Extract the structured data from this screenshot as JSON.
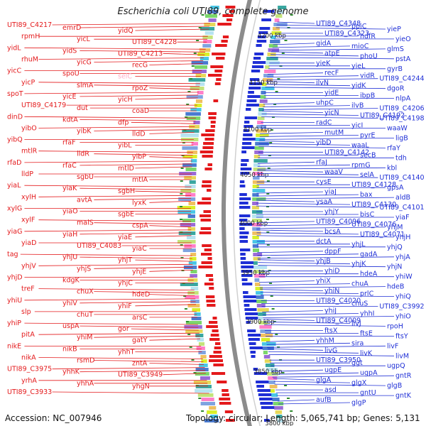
{
  "title": "Escherichia coli UTI89, complete genome",
  "footer": {
    "accession": "Accession: NC_007946",
    "topology": "Topology: circular; Length: 5,065,741 bp; Genes: 5,131"
  },
  "colors": {
    "left_label": "#e41a1c",
    "right_label": "#1f2fd6",
    "backbone": "#8c8c8c",
    "tick_label": "#222222",
    "gene_palette": [
      "#d9ef2a",
      "#49c6e5",
      "#4a7bd0",
      "#7bd66b",
      "#9a6bd6",
      "#e6d85a",
      "#39a7a0",
      "#b7e3f0",
      "#c3e37a",
      "#ff7fc9",
      "#7fa3e0",
      "#f0c060"
    ]
  },
  "ticks": [
    "4200 kbp",
    "4150 kbp",
    "4100 kbp",
    "4050 kbp",
    "4000 kbp",
    "3950 kbp",
    "3900 kbp",
    "3850 kbp",
    "3800 kbp"
  ],
  "left_genes": [
    "UTI89_C4217",
    "emrD",
    "yidQ",
    "rpmH",
    "yicL",
    "UTI89_C4228",
    "yidL",
    "yidS",
    "UTI89_C4213",
    "rhuM",
    "yicG",
    "recG",
    "yicC",
    "spoU",
    "selC",
    "yicP",
    "slmA",
    "rpoZ",
    "spoT",
    "yicE",
    "yicH",
    "UTI89_C4179",
    "dut",
    "coaD",
    "dinD",
    "kdtA",
    "dfp",
    "yibO",
    "yibK",
    "lldD",
    "yibQ",
    "rfaF",
    "yibL",
    "mtlR",
    "lldR",
    "yibP",
    "rfaD",
    "rfaC",
    "mtlD",
    "lldP",
    "sgbU",
    "mtlA",
    "yiaL",
    "yiaK",
    "sgbH",
    "xylH",
    "avtA",
    "lyxK",
    "xylG",
    "yiaO",
    "sgbE",
    "xylF",
    "malS",
    "cspA",
    "yiaG",
    "yiaH",
    "yiaE",
    "yiaD",
    "UTI89_C4083",
    "yiaC",
    "tag",
    "yhjU",
    "yhjT",
    "yhjV",
    "yhjS",
    "yhjE",
    "yhjD",
    "kdgK",
    "yhjC",
    "treF",
    "chuX",
    "hdeD",
    "yhiU",
    "yhiV",
    "yhiF",
    "slp",
    "chuT",
    "arsC",
    "yhiP",
    "uspA",
    "gor",
    "pitA",
    "yhiM",
    "gatY",
    "nikE",
    "nikB",
    "yhhT",
    "nikA",
    "rsmD",
    "zntA",
    "UTI89_C3975",
    "yhhK",
    "UTI89_C3949",
    "yrhA",
    "yhhA",
    "yhgN",
    "UTI89_C3933"
  ],
  "right_genes": [
    "UTI89_C4348",
    "ppiC",
    "yieP",
    "UTI89_C4323",
    "hdfR",
    "yieO",
    "gidA",
    "mioC",
    "glmS",
    "atpE",
    "phoU",
    "pstA",
    "yieK",
    "yieL",
    "gyrB",
    "recF",
    "vidR",
    "UTI89_C4244",
    "ilvN",
    "yidK",
    "dgoR",
    "yidE",
    "ibpB",
    "nlpA",
    "uhpC",
    "ilvB",
    "UTI89_C4206",
    "yicN",
    "UTI89_C4192",
    "UTI89_C4198",
    "radC",
    "yicI",
    "waaW",
    "mutM",
    "pyrE",
    "ligB",
    "yibD",
    "waaL",
    "rfaY",
    "UTI89_C4142",
    "secB",
    "tdh",
    "rfaJ",
    "rpmG",
    "kbl",
    "waaV",
    "selA",
    "UTI89_C4140",
    "cysE",
    "UTI89_C4128",
    "gpsA",
    "yiaJ",
    "bax",
    "aldB",
    "ysaA",
    "UTI89_C4130",
    "UTI89_C4101",
    "yhjY",
    "bisC",
    "yiaF",
    "UTI89_C4096",
    "UTI89_C4076",
    "yhjM",
    "bcsA",
    "UTI89_C4071",
    "yhjH",
    "dctA",
    "yhjL",
    "yhjQ",
    "dppF",
    "gadA",
    "yhjA",
    "yhjB",
    "yhjK",
    "yhjN",
    "yhiD",
    "hdeA",
    "yhiW",
    "yhiX",
    "chuA",
    "hdeB",
    "yhiN",
    "prlC",
    "yhiQ",
    "UTI89_C4020",
    "chuS",
    "UTI89_C3992",
    "yhiJ",
    "yhhI",
    "yhiO",
    "UTI89_C4009",
    "livJ",
    "rpoH",
    "ftsX",
    "ftsE",
    "ftsY",
    "yhhM",
    "sira",
    "livF",
    "livG",
    "livK",
    "livM",
    "UTI89_C3950",
    "ggt",
    "ugpQ",
    "ugpE",
    "ugpA",
    "gntR",
    "glgA",
    "glgX",
    "glgB",
    "asd",
    "gntU",
    "gntK",
    "aufB",
    "glgP"
  ]
}
